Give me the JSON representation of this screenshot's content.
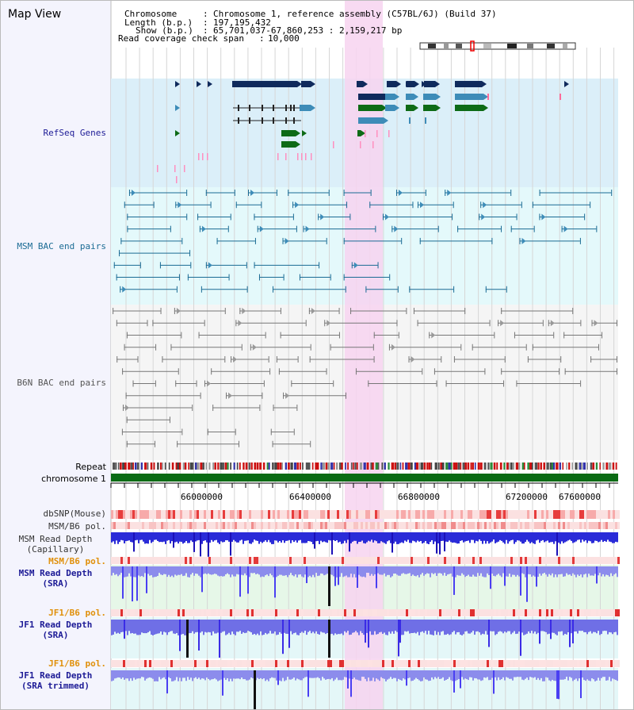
{
  "header": {
    "map_title": "Map View",
    "chromosome_label": "Chromosome",
    "chromosome_value": "Chromosome 1, reference assembly (C57BL/6J) (Build 37)",
    "length_label": "Length (b.p.)",
    "length_value": "197,195,432",
    "show_label": "Show (b.p.)",
    "show_value": "65,701,037-67,860,253 : 2,159,217 bp",
    "coverage_label": "Read coverage check span",
    "coverage_value": "10,000"
  },
  "tracks": {
    "refseq": "RefSeq Genes",
    "msm_bac": "MSM BAC end pairs",
    "b6n_bac": "B6N BAC end pairs",
    "repeat": "Repeat",
    "chromosome": "chromosome 1",
    "dbsnp": "dbSNP(Mouse)",
    "msm_b6_pol": "MSM/B6 pol.",
    "msm_depth_cap_1": "MSM Read Depth",
    "msm_depth_cap_2": "(Capillary)",
    "msm_b6_pol2": "MSM/B6 pol.",
    "msm_depth_sra_1": "MSM Read Depth",
    "msm_depth_sra_2": "(SRA)",
    "jf1_pol1": "JF1/B6 pol.",
    "jf1_depth_sra_1": "JF1 Read Depth",
    "jf1_depth_sra_2": "(SRA)",
    "jf1_pol2": "JF1/B6 pol.",
    "jf1_depth_trim_1": "JF1 Read Depth",
    "jf1_depth_trim_2": "(SRA trimmed)"
  },
  "axis_ticks": [
    "66000000",
    "66400000",
    "66800000",
    "67200000",
    "67600000"
  ],
  "colors": {
    "refseq_bg": "#dbeff9",
    "bac_bg": "#e4f9fb",
    "highlight": "#f7d4f0",
    "gene_dark": "#0f2a5c",
    "gene_mid": "#3d8cb8",
    "gene_green": "#0d6b16",
    "bac_line": "#1a6b94",
    "grey_line": "#777777",
    "chrom_bar": "#0a6b14",
    "depth_blue": "#3a2be6",
    "label_navy": "#1d1b96",
    "label_orange": "#e0900a"
  }
}
